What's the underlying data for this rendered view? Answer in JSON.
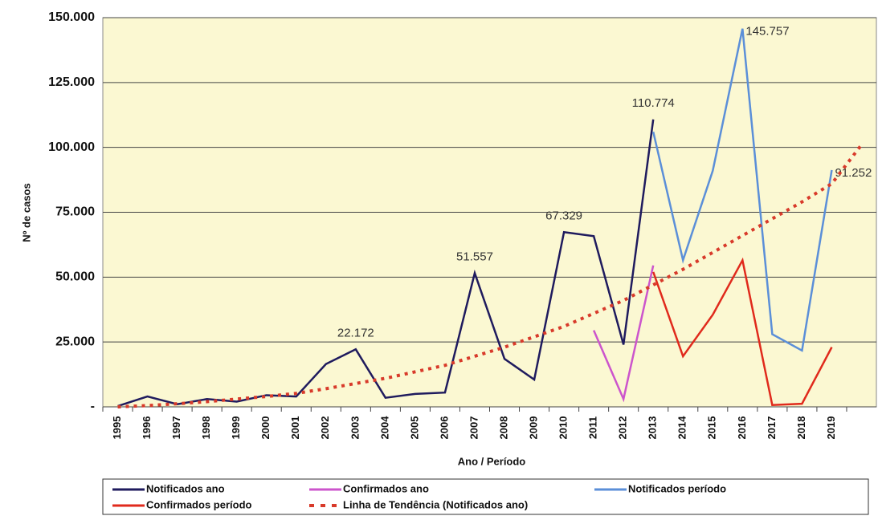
{
  "chart_data": {
    "type": "line",
    "y_label": "Nº de casos",
    "x_label": "Ano / Período",
    "categories": [
      "1995",
      "1996",
      "1997",
      "1998",
      "1999",
      "2000",
      "2001",
      "2002",
      "2003",
      "2004",
      "2005",
      "2006",
      "2007",
      "2008",
      "2009",
      "2010",
      "2011",
      "2012",
      "2013",
      "2014",
      "2015",
      "2016",
      "2017",
      "2018",
      "2019",
      null
    ],
    "series": [
      {
        "name": "Notificados ano",
        "color": "#1f1b5e",
        "dash": false,
        "values": [
          300,
          4000,
          1000,
          3000,
          2000,
          4500,
          4000,
          16500,
          22172,
          3500,
          5000,
          5500,
          51557,
          18500,
          10500,
          67329,
          65800,
          24000,
          110774,
          null,
          null,
          null,
          null,
          null,
          null,
          null
        ],
        "value_labels": [
          null,
          null,
          null,
          null,
          null,
          null,
          null,
          null,
          "22.172",
          null,
          null,
          null,
          "51.557",
          null,
          null,
          "67.329",
          null,
          null,
          "110.774",
          null,
          null,
          null,
          null,
          null,
          null,
          null
        ]
      },
      {
        "name": "Confirmados ano",
        "color": "#cc55cc",
        "dash": false,
        "values": [
          null,
          null,
          null,
          null,
          null,
          null,
          null,
          null,
          null,
          null,
          null,
          null,
          null,
          null,
          null,
          null,
          29500,
          3000,
          54500,
          null,
          null,
          null,
          null,
          null,
          null,
          null
        ]
      },
      {
        "name": "Notificados período",
        "color": "#5b8fd8",
        "dash": false,
        "values": [
          null,
          null,
          null,
          null,
          null,
          null,
          null,
          null,
          null,
          null,
          null,
          null,
          null,
          null,
          null,
          null,
          null,
          null,
          106000,
          56500,
          91000,
          145757,
          28000,
          21700,
          91252,
          null
        ],
        "value_labels": [
          null,
          null,
          null,
          null,
          null,
          null,
          null,
          null,
          null,
          null,
          null,
          null,
          null,
          null,
          null,
          null,
          null,
          null,
          null,
          null,
          null,
          "145.757",
          null,
          null,
          "91.252",
          null
        ]
      },
      {
        "name": "Confirmados período",
        "color": "#e02a1c",
        "dash": false,
        "values": [
          null,
          null,
          null,
          null,
          null,
          null,
          null,
          null,
          null,
          null,
          null,
          null,
          null,
          null,
          null,
          null,
          null,
          null,
          52000,
          19500,
          35500,
          56500,
          700,
          1200,
          23000,
          null
        ]
      },
      {
        "name": "Linha de Tendência (Notificados ano)",
        "color": "#d83a2a",
        "dash": true,
        "values": [
          0,
          500,
          1200,
          2000,
          3000,
          4000,
          5200,
          7000,
          9000,
          11000,
          13500,
          16000,
          19500,
          23000,
          27000,
          31000,
          36000,
          41000,
          47000,
          53000,
          59500,
          66000,
          72500,
          79000,
          86000,
          101000
        ]
      }
    ],
    "ylim": [
      0,
      150000
    ],
    "yticks": [
      {
        "value": 0,
        "label": "-"
      },
      {
        "value": 25000,
        "label": "25.000"
      },
      {
        "value": 50000,
        "label": "50.000"
      },
      {
        "value": 75000,
        "label": "75.000"
      },
      {
        "value": 100000,
        "label": "100.000"
      },
      {
        "value": 125000,
        "label": "125.000"
      },
      {
        "value": 150000,
        "label": "150.000"
      }
    ],
    "grid": true,
    "legend": "bottom"
  }
}
